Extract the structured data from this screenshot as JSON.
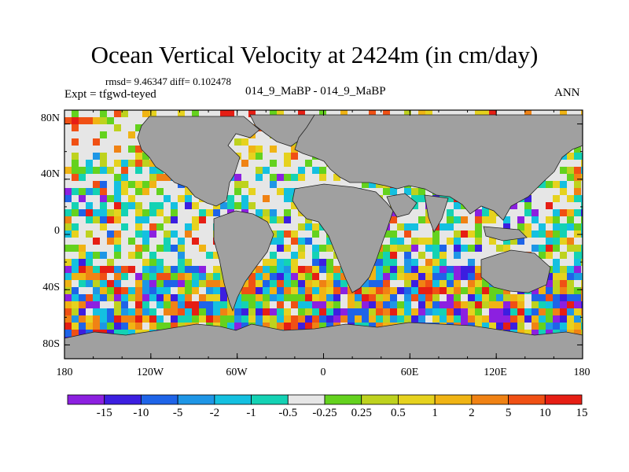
{
  "chart_data": {
    "type": "heatmap",
    "title": "Ocean Vertical Velocity at 2424m (in cm/day)",
    "stats_line": "rmsd= 9.46347 diff= 0.102478",
    "experiment_label": "Expt = tfgwd-teyed",
    "center_label": "014_9_MaBP - 014_9_MaBP",
    "season_label": "ANN",
    "x_ticks": [
      "180",
      "120W",
      "60W",
      "0",
      "60E",
      "120E",
      "180"
    ],
    "y_ticks": [
      "80N",
      "40N",
      "0",
      "40S",
      "80S"
    ],
    "xlim": [
      -180,
      180
    ],
    "ylim": [
      -90,
      90
    ],
    "land_color": "#a0a0a0",
    "colorbar": {
      "labels": [
        "-15",
        "-10",
        "-5",
        "-2",
        "-1",
        "-0.5",
        "-0.25",
        "0.25",
        "0.5",
        "1",
        "2",
        "5",
        "10",
        "15"
      ],
      "colors": [
        "#8c20e0",
        "#3c1ee0",
        "#1e64e8",
        "#1e96e6",
        "#14c0e0",
        "#14d2b4",
        "#e6e6e6",
        "#64d21e",
        "#bed21e",
        "#e6d21e",
        "#f0b414",
        "#f08214",
        "#f05014",
        "#e61e14"
      ]
    }
  }
}
